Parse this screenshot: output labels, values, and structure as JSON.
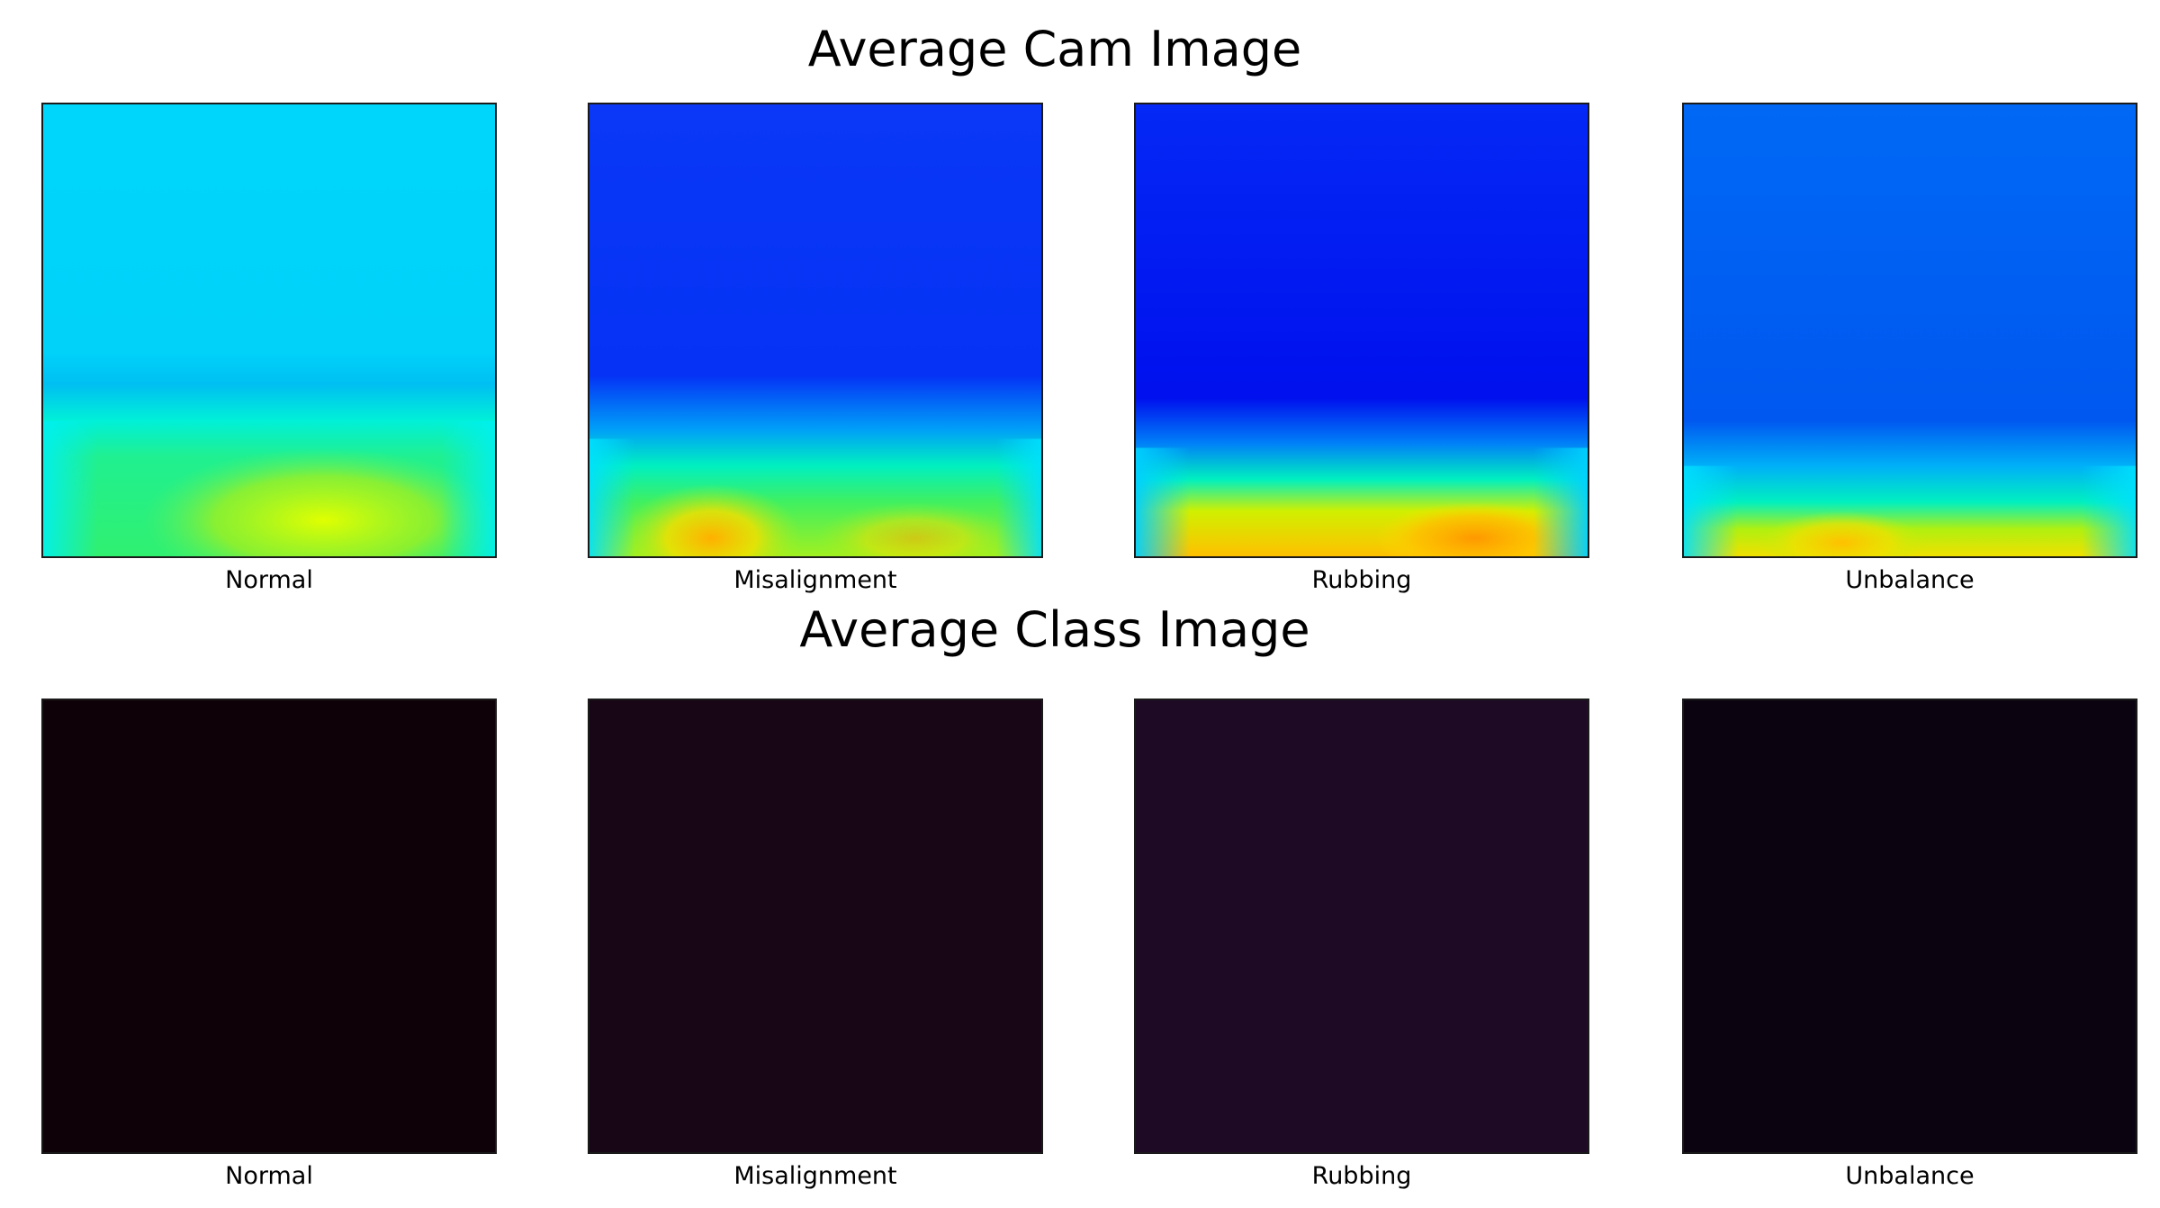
{
  "titles": {
    "cam": "Average Cam Image",
    "class": "Average Class Image"
  },
  "cam_panels": [
    {
      "label": "Normal",
      "top_color": "#00d4fb",
      "mid_color": "#00c8f5",
      "hot_color": "#c8f000"
    },
    {
      "label": "Misalignment",
      "top_color": "#0a3af5",
      "mid_color": "#0530f5",
      "hot_color": "#ffc800"
    },
    {
      "label": "Rubbing",
      "top_color": "#0428f5",
      "mid_color": "#0010ee",
      "hot_color": "#ffa000"
    },
    {
      "label": "Unbalance",
      "top_color": "#0068f5",
      "mid_color": "#0060f2",
      "hot_color": "#ffd000"
    }
  ],
  "class_panels": [
    {
      "label": "Normal",
      "color": "#0e0208"
    },
    {
      "label": "Misalignment",
      "color": "#180515"
    },
    {
      "label": "Rubbing",
      "color": "#1e0a25"
    },
    {
      "label": "Unbalance",
      "color": "#0b0410"
    }
  ]
}
